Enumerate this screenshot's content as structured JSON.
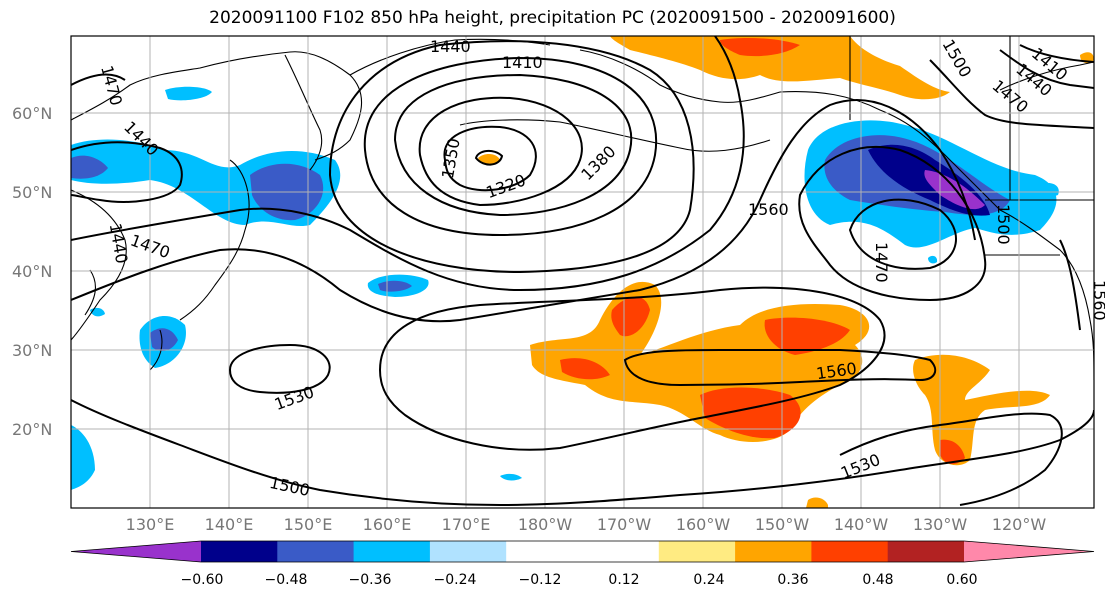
{
  "title": "2020091100 F102 850 hPa height, precipitation PC (2020091500 - 2020091600)",
  "map": {
    "lat_labels": [
      "60°N",
      "50°N",
      "40°N",
      "30°N",
      "20°N"
    ],
    "lon_labels": [
      "130°E",
      "140°E",
      "150°E",
      "160°E",
      "170°E",
      "180°W",
      "170°W",
      "160°W",
      "150°W",
      "140°W",
      "130°W",
      "120°W"
    ],
    "contour_labels": [
      "1440",
      "1410",
      "1470",
      "1440",
      "1380",
      "1350",
      "1320",
      "1560",
      "1470",
      "1440",
      "1470",
      "1500",
      "1410",
      "1440",
      "1470",
      "1560",
      "1500",
      "1530",
      "1560",
      "1530",
      "1500"
    ],
    "colors": {
      "land_outline": "#000000",
      "grid": "#b3b3b3",
      "contour": "#000000"
    }
  },
  "colorbar": {
    "colors": [
      "#9932CC",
      "#00008B",
      "#3A5BC7",
      "#00BFFF",
      "#B0E2FF",
      "#FFFFFF",
      "#FFFFFF",
      "#FFEB82",
      "#FFA500",
      "#FF4000",
      "#B22222",
      "#FF88AA"
    ],
    "labels": [
      "−0.60",
      "−0.48",
      "−0.36",
      "−0.24",
      "−0.12",
      "0.12",
      "0.24",
      "0.36",
      "0.48",
      "0.60"
    ]
  }
}
